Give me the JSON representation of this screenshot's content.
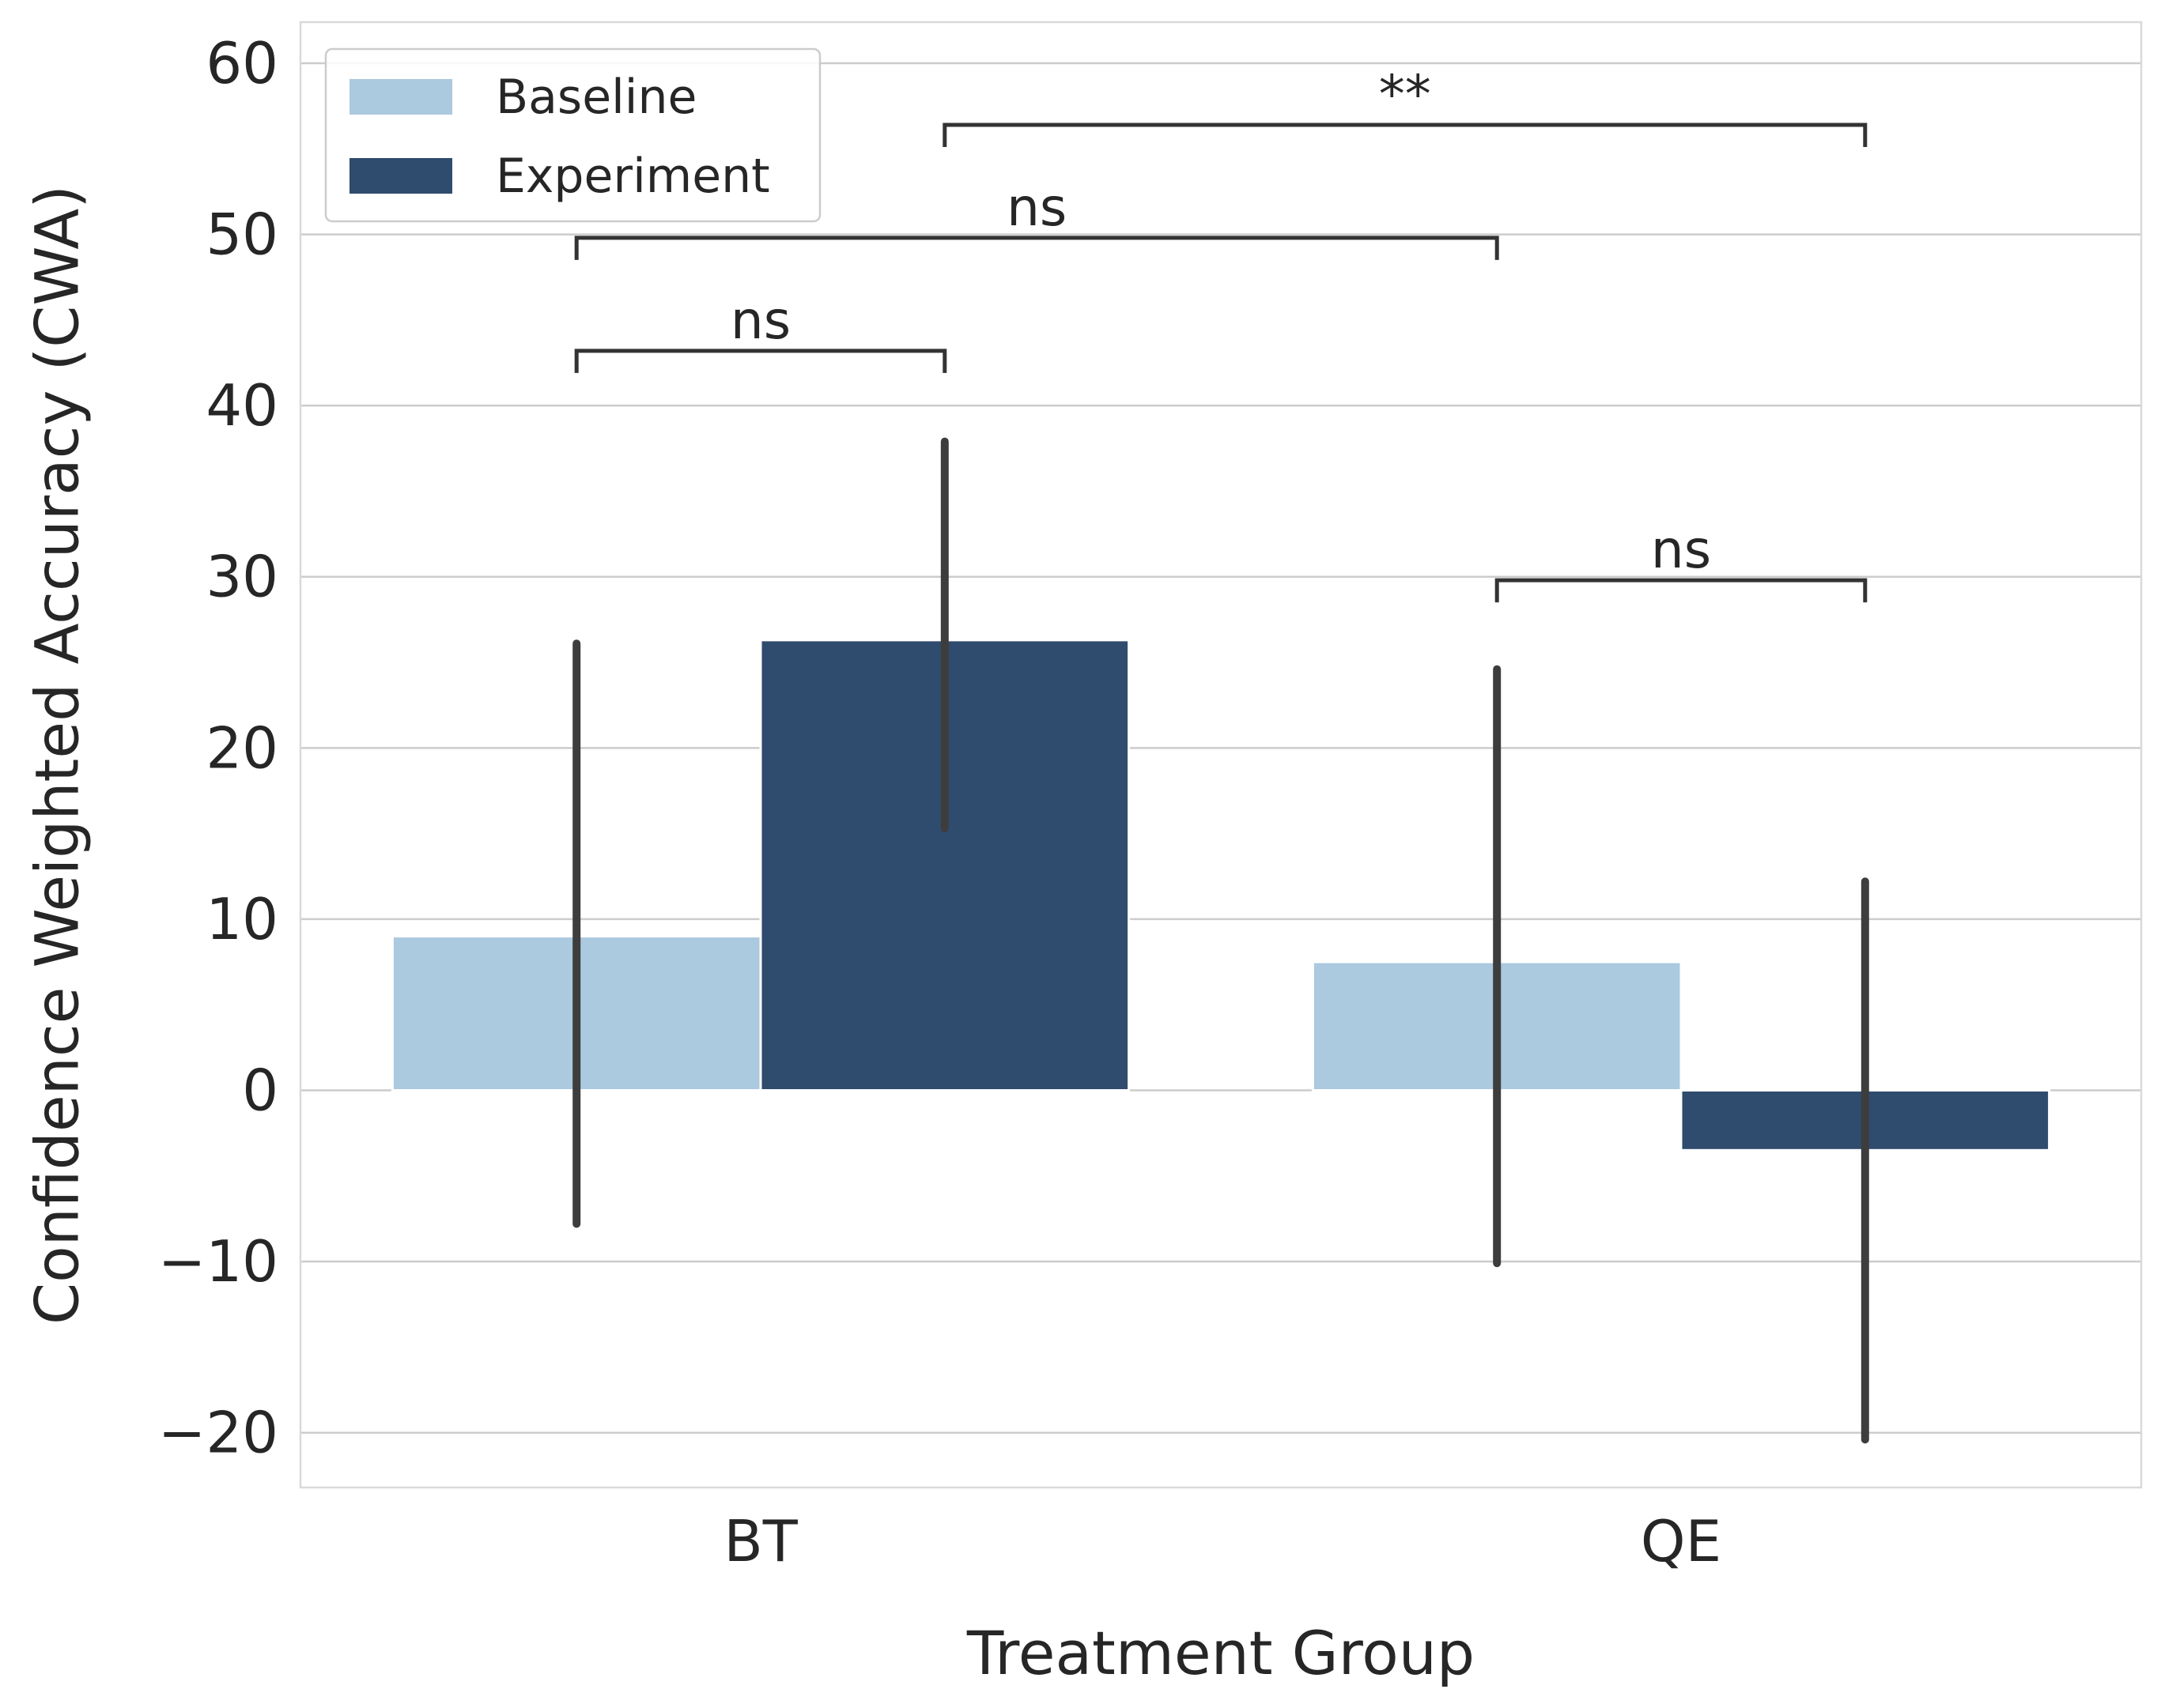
{
  "chart_data": {
    "type": "bar",
    "title": "",
    "xlabel": "Treatment Group",
    "ylabel": "Confidence Weighted Accuracy (CWA)",
    "ylim": [
      -23.2,
      62.4
    ],
    "yticks": [
      -20,
      -10,
      0,
      10,
      20,
      30,
      40,
      50,
      60
    ],
    "ytick_labels": [
      "−20",
      "−10",
      "0",
      "10",
      "20",
      "30",
      "40",
      "50",
      "60"
    ],
    "grid": true,
    "categories": [
      "BT",
      "QE"
    ],
    "series": [
      {
        "name": "Baseline",
        "color": "#abc9df",
        "values": [
          9.0,
          7.5
        ],
        "ci": [
          [
            -7.8,
            26.1
          ],
          [
            -10.1,
            24.6
          ]
        ]
      },
      {
        "name": "Experiment",
        "color": "#2f4b6e",
        "values": [
          26.3,
          -3.5
        ],
        "ci": [
          [
            15.3,
            37.9
          ],
          [
            -20.4,
            12.2
          ]
        ]
      }
    ],
    "errorbar_color": "#3d3d3d",
    "legend": {
      "position": "top-left",
      "entries": [
        "Baseline",
        "Experiment"
      ]
    },
    "annotations": [
      {
        "text": "ns",
        "from": [
          "BT",
          "Baseline"
        ],
        "to": [
          "BT",
          "Experiment"
        ],
        "level": 43.2
      },
      {
        "text": "ns",
        "from": [
          "BT",
          "Baseline"
        ],
        "to": [
          "QE",
          "Baseline"
        ],
        "level": 49.8
      },
      {
        "text": "**",
        "from": [
          "BT",
          "Experiment"
        ],
        "to": [
          "QE",
          "Experiment"
        ],
        "level": 56.4
      },
      {
        "text": "ns",
        "from": [
          "QE",
          "Baseline"
        ],
        "to": [
          "QE",
          "Experiment"
        ],
        "level": 29.8
      }
    ]
  }
}
